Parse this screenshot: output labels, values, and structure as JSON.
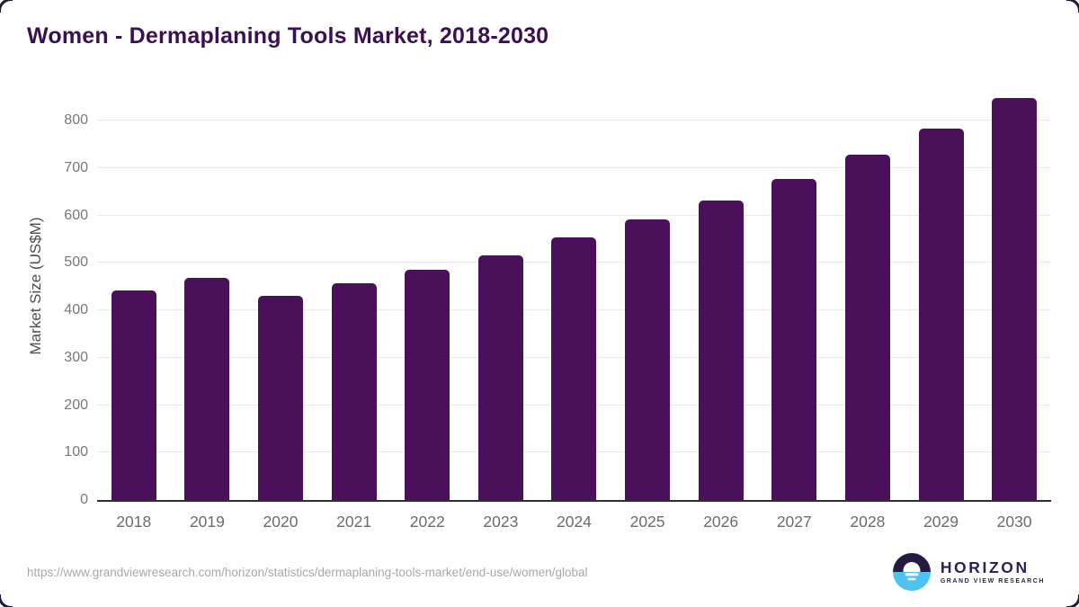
{
  "chart": {
    "title": "Women - Dermaplaning Tools Market, 2018-2030",
    "ylabel": "Market Size (US$M)"
  },
  "chart_data": {
    "type": "bar",
    "categories": [
      "2018",
      "2019",
      "2020",
      "2021",
      "2022",
      "2023",
      "2024",
      "2025",
      "2026",
      "2027",
      "2028",
      "2029",
      "2030"
    ],
    "values": [
      442,
      468,
      430,
      457,
      486,
      517,
      554,
      592,
      631,
      678,
      729,
      784,
      848
    ],
    "title": "Women - Dermaplaning Tools Market, 2018-2030",
    "xlabel": "",
    "ylabel": "Market Size (US$M)",
    "ylim": [
      0,
      850
    ],
    "yticks": [
      0,
      100,
      200,
      300,
      400,
      500,
      600,
      700,
      800
    ],
    "grid": "horizontal-only",
    "legend": "none",
    "bar_color": "#4a1059"
  },
  "footer": {
    "source_url": "https://www.grandviewresearch.com/horizon/statistics/dermaplaning-tools-market/end-use/women/global",
    "logo": {
      "name": "HORIZON",
      "subtitle": "GRAND VIEW RESEARCH",
      "mark": "sunset-circle-icon"
    }
  },
  "colors": {
    "bar": "#4a1059",
    "title": "#3b1053",
    "grid": "#e9e9e9",
    "axis": "#2e2e2e",
    "y_tick": "#77787b",
    "x_tick": "#6a6b6e",
    "y_label": "#4d4d4f",
    "url": "#a6a8ab",
    "logo_dark": "#261a41",
    "logo_blue": "#4ec3ef",
    "logo_text": "#2f2057"
  }
}
